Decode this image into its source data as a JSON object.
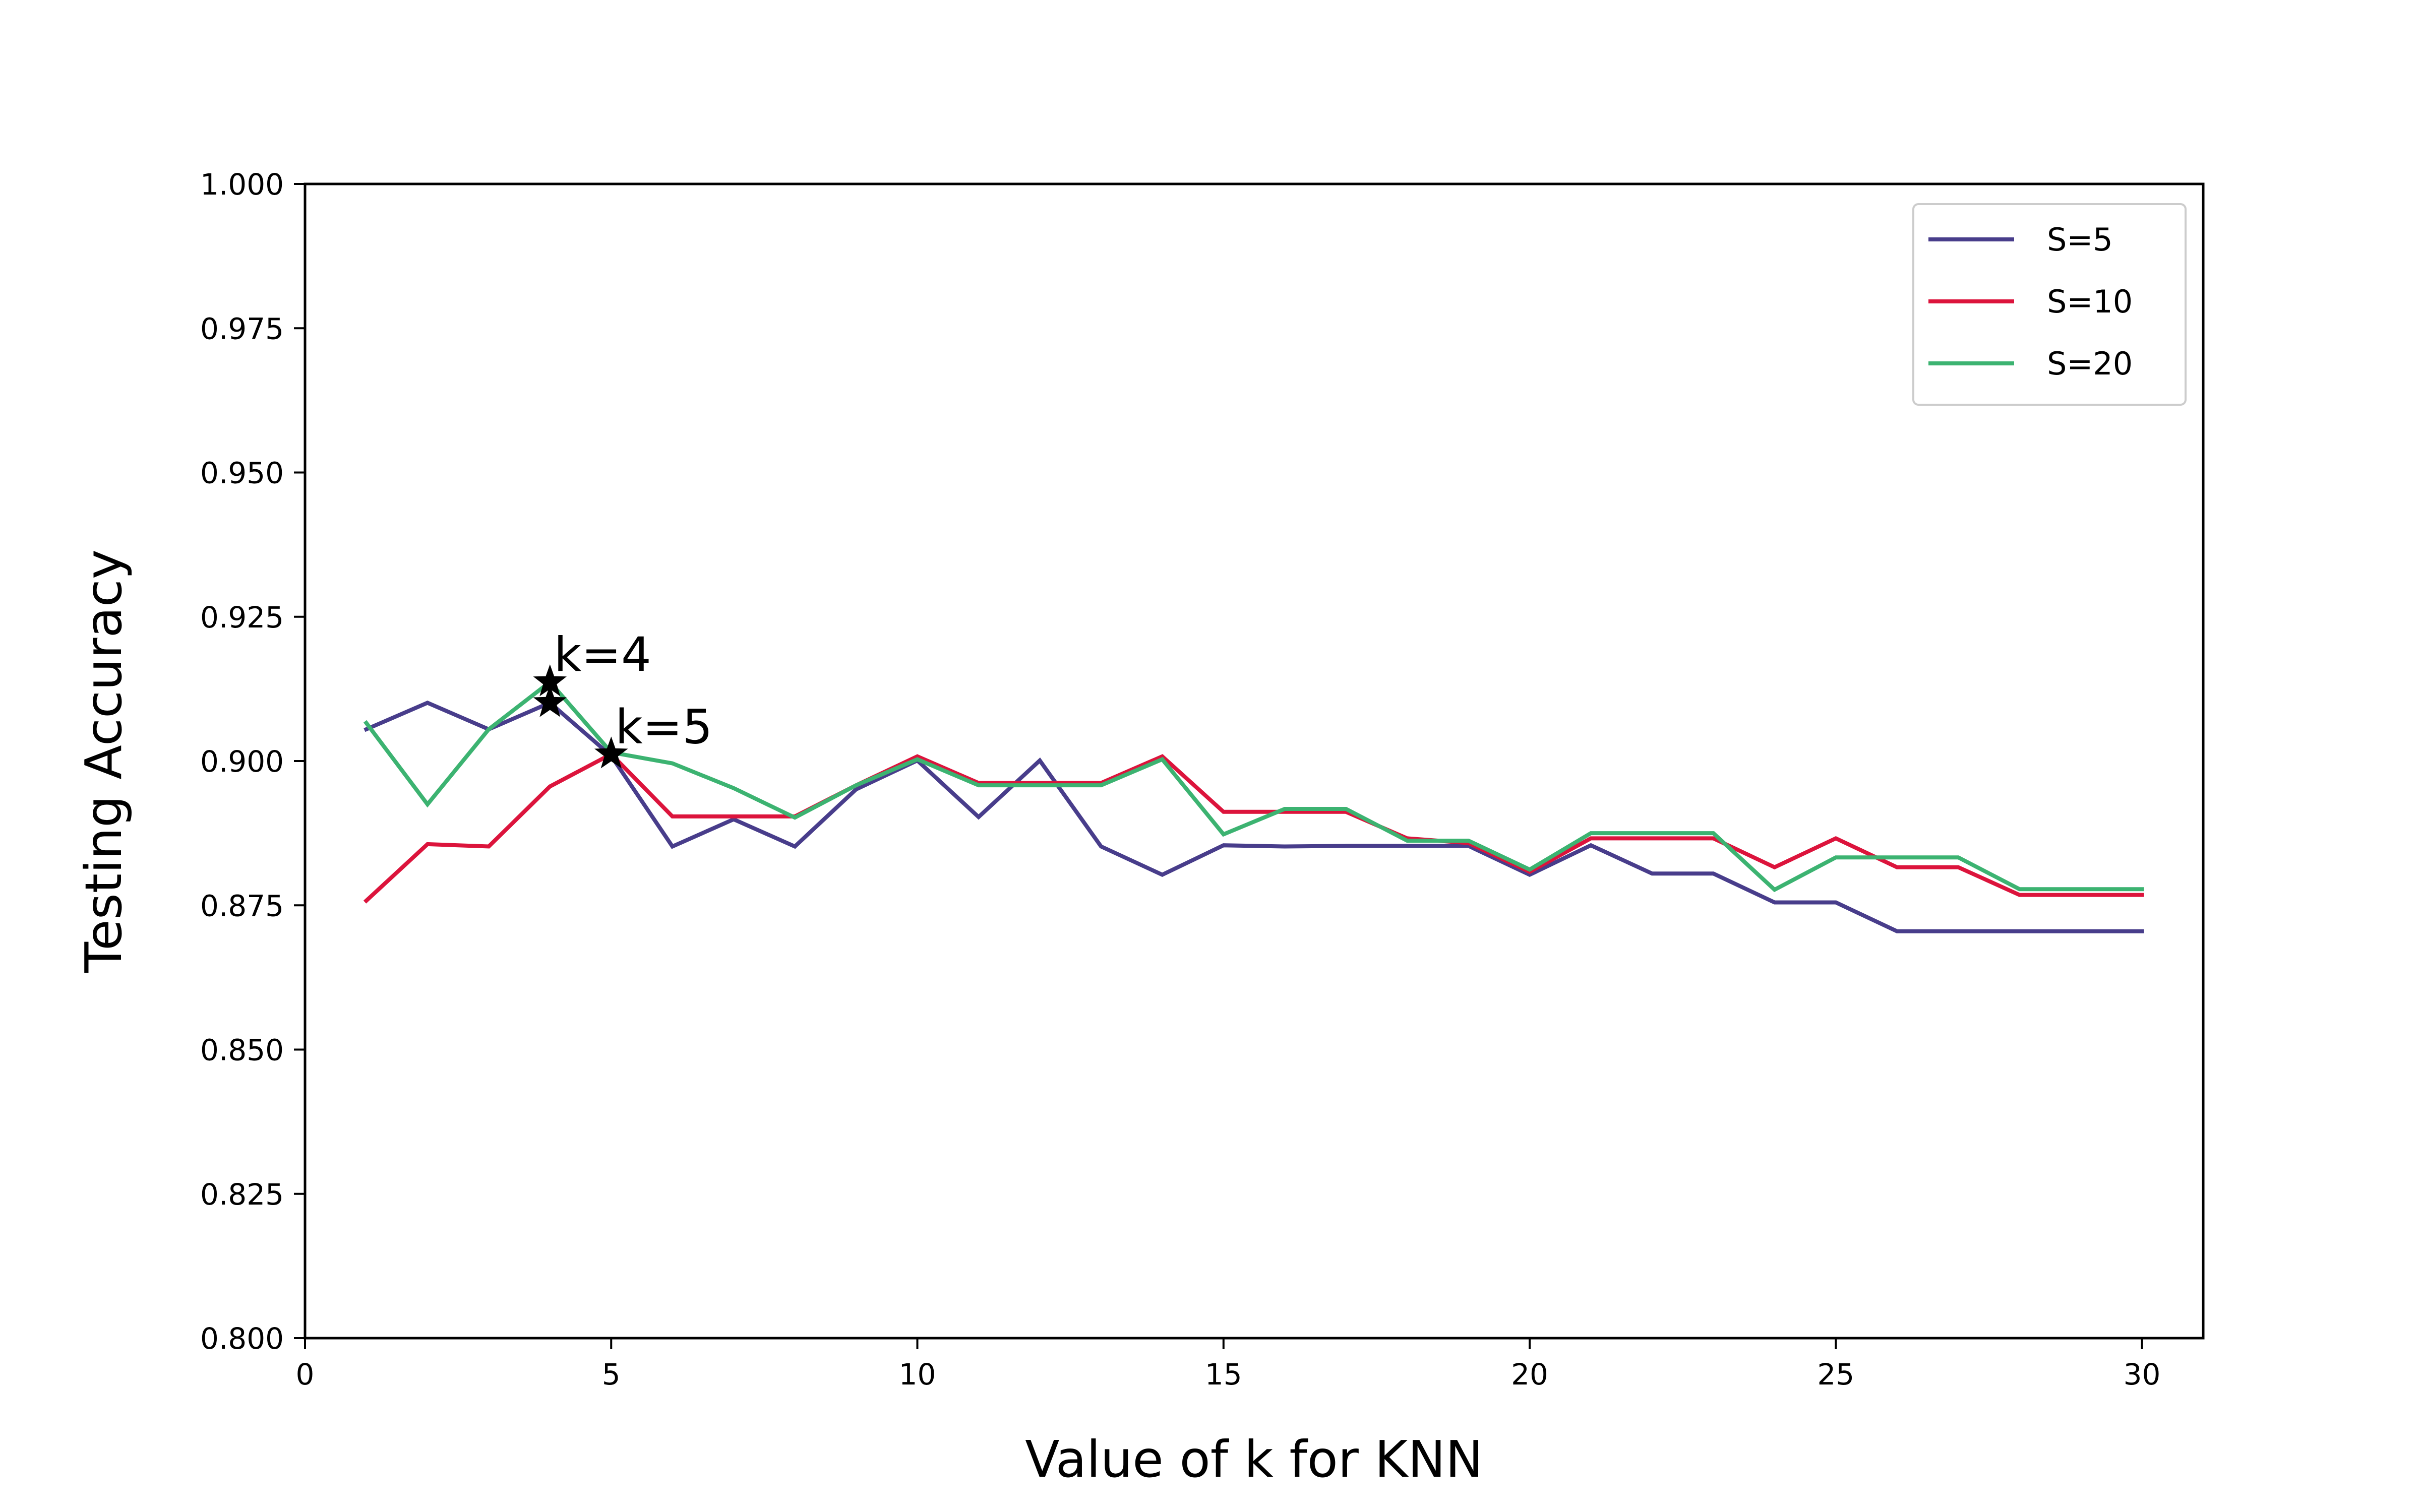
{
  "chart_data": {
    "type": "line",
    "title": "",
    "xlabel": "Value of k for KNN",
    "ylabel": "Testing Accuracy",
    "xlim": [
      0,
      31
    ],
    "ylim": [
      0.8,
      1.0
    ],
    "xticks": [
      0,
      5,
      10,
      15,
      20,
      25,
      30
    ],
    "xtick_labels": [
      "0",
      "5",
      "10",
      "15",
      "20",
      "25",
      "30"
    ],
    "yticks": [
      0.8,
      0.825,
      0.85,
      0.875,
      0.9,
      0.925,
      0.95,
      0.975,
      1.0
    ],
    "ytick_labels": [
      "0.800",
      "0.825",
      "0.850",
      "0.875",
      "0.900",
      "0.925",
      "0.950",
      "0.975",
      "1.000"
    ],
    "grid": false,
    "legend_position": "top-right",
    "x": [
      1,
      2,
      3,
      4,
      5,
      6,
      7,
      8,
      9,
      10,
      11,
      12,
      13,
      14,
      15,
      16,
      17,
      18,
      19,
      20,
      21,
      22,
      23,
      24,
      25,
      26,
      27,
      28,
      29,
      30
    ],
    "series": [
      {
        "name": "S=5",
        "color": "#483D8B",
        "values": [
          0.9055,
          0.9101,
          0.9055,
          0.9101,
          0.9009,
          0.8852,
          0.8899,
          0.8852,
          0.8951,
          0.9001,
          0.8903,
          0.9001,
          0.8852,
          0.8803,
          0.8854,
          0.8852,
          0.8853,
          0.8853,
          0.8853,
          0.8803,
          0.8854,
          0.8805,
          0.8805,
          0.8755,
          0.8755,
          0.8705,
          0.8705,
          0.8705,
          0.8705,
          0.8705
        ]
      },
      {
        "name": "S=10",
        "color": "#DC143C",
        "values": [
          0.8758,
          0.8856,
          0.8852,
          0.8956,
          0.9012,
          0.8904,
          0.8904,
          0.8904,
          0.8958,
          0.9008,
          0.8962,
          0.8962,
          0.8962,
          0.9008,
          0.8912,
          0.8912,
          0.8912,
          0.8866,
          0.8858,
          0.8808,
          0.8866,
          0.8866,
          0.8866,
          0.8816,
          0.8866,
          0.8816,
          0.8816,
          0.8768,
          0.8768,
          0.8768
        ]
      },
      {
        "name": "S=20",
        "color": "#3CB371",
        "values": [
          0.9066,
          0.8925,
          0.9055,
          0.9137,
          0.9015,
          0.8996,
          0.8953,
          0.8902,
          0.8958,
          0.9003,
          0.8958,
          0.8958,
          0.8958,
          0.9003,
          0.8873,
          0.8917,
          0.8917,
          0.8862,
          0.8862,
          0.8812,
          0.8875,
          0.8875,
          0.8875,
          0.8777,
          0.8833,
          0.8833,
          0.8833,
          0.8778,
          0.8778,
          0.8778
        ]
      }
    ],
    "markers": [
      {
        "x": 4,
        "y": 0.9137,
        "symbol": "star",
        "label": "k=4"
      },
      {
        "x": 4,
        "y": 0.9101,
        "symbol": "star",
        "label": ""
      },
      {
        "x": 5,
        "y": 0.9012,
        "symbol": "star",
        "label": "k=5"
      }
    ]
  }
}
